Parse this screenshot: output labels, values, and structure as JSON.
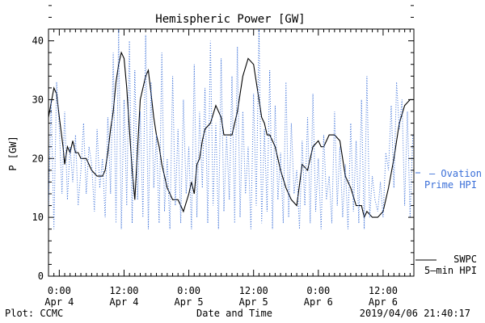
{
  "chart_data": {
    "type": "line",
    "title": "Hemispheric Power [GW]",
    "ylabel": "P [GW]",
    "xlabel": "Date and Time",
    "ylim": [
      0,
      42
    ],
    "yticks": [
      0,
      10,
      20,
      30,
      40
    ],
    "xlim_hours": [
      -2,
      65.7
    ],
    "x_ticks": [
      {
        "time": "0:00",
        "date": "Apr 4"
      },
      {
        "time": "12:00",
        "date": "Apr 4"
      },
      {
        "time": "0:00",
        "date": "Apr 5"
      },
      {
        "time": "12:00",
        "date": "Apr 5"
      },
      {
        "time": "0:00",
        "date": "Apr 6"
      },
      {
        "time": "12:00",
        "date": "Apr 6"
      }
    ],
    "grid": false,
    "legend_position": "right",
    "colors": {
      "swpc": "#000000",
      "ovation": "#3a6fd8"
    },
    "series": [
      {
        "name": "SWPC 5-min HPI",
        "style": "solid",
        "x_hours": [
          -2,
          -1,
          -0.5,
          0,
          0.7,
          1,
          1.5,
          2,
          2.5,
          3,
          3.5,
          4,
          4.5,
          5,
          6,
          7,
          8,
          8.5,
          9,
          9.5,
          10,
          10.5,
          11,
          11.5,
          12,
          12.5,
          13,
          13.5,
          14,
          15,
          16,
          16.5,
          17,
          17.5,
          18,
          18.5,
          19,
          20,
          21,
          22,
          23,
          24,
          24.5,
          25,
          25.5,
          26,
          26.5,
          27,
          28,
          29,
          30,
          30.5,
          31,
          32,
          33,
          34,
          35,
          36,
          37,
          37.5,
          38,
          38.5,
          39,
          40,
          41,
          42,
          43,
          44,
          45,
          46,
          47,
          48,
          48.5,
          49,
          50,
          51,
          52,
          53,
          54,
          55,
          56,
          56.5,
          57,
          58,
          59,
          60,
          61,
          62,
          63,
          64,
          65,
          65.7
        ],
        "values": [
          27,
          32,
          31,
          27,
          22,
          19,
          22,
          21,
          23,
          21,
          21,
          20,
          20,
          20,
          18,
          17,
          17,
          18,
          21,
          25,
          28,
          33,
          36,
          38,
          37,
          32,
          25,
          18,
          13,
          30,
          34,
          35,
          31,
          27,
          24,
          22,
          19,
          15,
          13,
          13,
          11,
          14,
          16,
          14,
          19,
          20,
          23,
          25,
          26,
          29,
          27,
          24,
          24,
          24,
          28,
          34,
          37,
          36,
          30,
          27,
          26,
          24,
          24,
          22,
          18,
          15,
          13,
          12,
          19,
          18,
          22,
          23,
          22,
          22,
          24,
          24,
          23,
          17,
          15,
          12,
          12,
          10,
          11,
          10,
          10,
          11,
          15,
          20,
          26,
          29,
          30,
          30
        ]
      },
      {
        "name": "Ovation Prime HPI",
        "style": "dotted",
        "x_hours": [
          -2,
          -1.5,
          -1,
          -0.5,
          0,
          0.5,
          1,
          1.5,
          2,
          2.5,
          3,
          3.5,
          4,
          4.5,
          5,
          5.5,
          6,
          6.5,
          7,
          7.5,
          8,
          8.5,
          9,
          9.5,
          10,
          10.5,
          11,
          11.5,
          12,
          12.5,
          13,
          13.5,
          14,
          14.5,
          15,
          15.5,
          16,
          16.5,
          17,
          17.5,
          18,
          18.5,
          19,
          19.5,
          20,
          20.5,
          21,
          21.5,
          22,
          22.5,
          23,
          23.5,
          24,
          24.5,
          25,
          25.5,
          26,
          26.5,
          27,
          27.5,
          28,
          28.5,
          29,
          29.5,
          30,
          30.5,
          31,
          31.5,
          32,
          32.5,
          33,
          33.5,
          34,
          34.5,
          35,
          35.5,
          36,
          36.5,
          37,
          37.5,
          38,
          38.5,
          39,
          39.5,
          40,
          40.5,
          41,
          41.5,
          42,
          42.5,
          43,
          43.5,
          44,
          44.5,
          45,
          45.5,
          46,
          46.5,
          47,
          47.5,
          48,
          48.5,
          49,
          49.5,
          50,
          50.5,
          51,
          51.5,
          52,
          52.5,
          53,
          53.5,
          54,
          54.5,
          55,
          55.5,
          56,
          56.5,
          57,
          57.5,
          58,
          58.5,
          59,
          59.5,
          60,
          60.5,
          61,
          61.5,
          62,
          62.5,
          63,
          63.5,
          64,
          64.5,
          65,
          65.5
        ],
        "values": [
          12,
          30,
          8,
          33,
          25,
          14,
          28,
          13,
          22,
          16,
          24,
          12,
          18,
          26,
          14,
          22,
          19,
          11,
          25,
          15,
          20,
          10,
          27,
          14,
          38,
          9,
          42,
          8,
          30,
          12,
          40,
          9,
          35,
          13,
          28,
          10,
          41,
          8,
          33,
          15,
          24,
          9,
          38,
          11,
          20,
          8,
          34,
          12,
          25,
          9,
          30,
          14,
          22,
          8,
          36,
          10,
          28,
          15,
          32,
          9,
          40,
          12,
          26,
          8,
          37,
          11,
          24,
          13,
          34,
          9,
          39,
          10,
          28,
          14,
          22,
          8,
          31,
          12,
          42,
          9,
          25,
          11,
          35,
          8,
          29,
          13,
          21,
          9,
          33,
          10,
          26,
          14,
          18,
          8,
          23,
          12,
          27,
          9,
          31,
          11,
          20,
          8,
          24,
          13,
          17,
          9,
          28,
          12,
          22,
          10,
          19,
          8,
          26,
          11,
          23,
          9,
          30,
          8,
          34,
          10,
          17,
          13,
          11,
          16,
          10,
          21,
          18,
          29,
          15,
          33,
          25,
          30,
          12,
          28,
          10,
          24
        ]
      }
    ],
    "legend": {
      "ovation": [
        "— Ovation",
        "Prime HPI"
      ],
      "swpc": [
        "SWPC",
        "5–min HPI"
      ]
    }
  },
  "footer": {
    "left": "Plot: CCMC",
    "right": "2019/04/06 21:40:17"
  }
}
